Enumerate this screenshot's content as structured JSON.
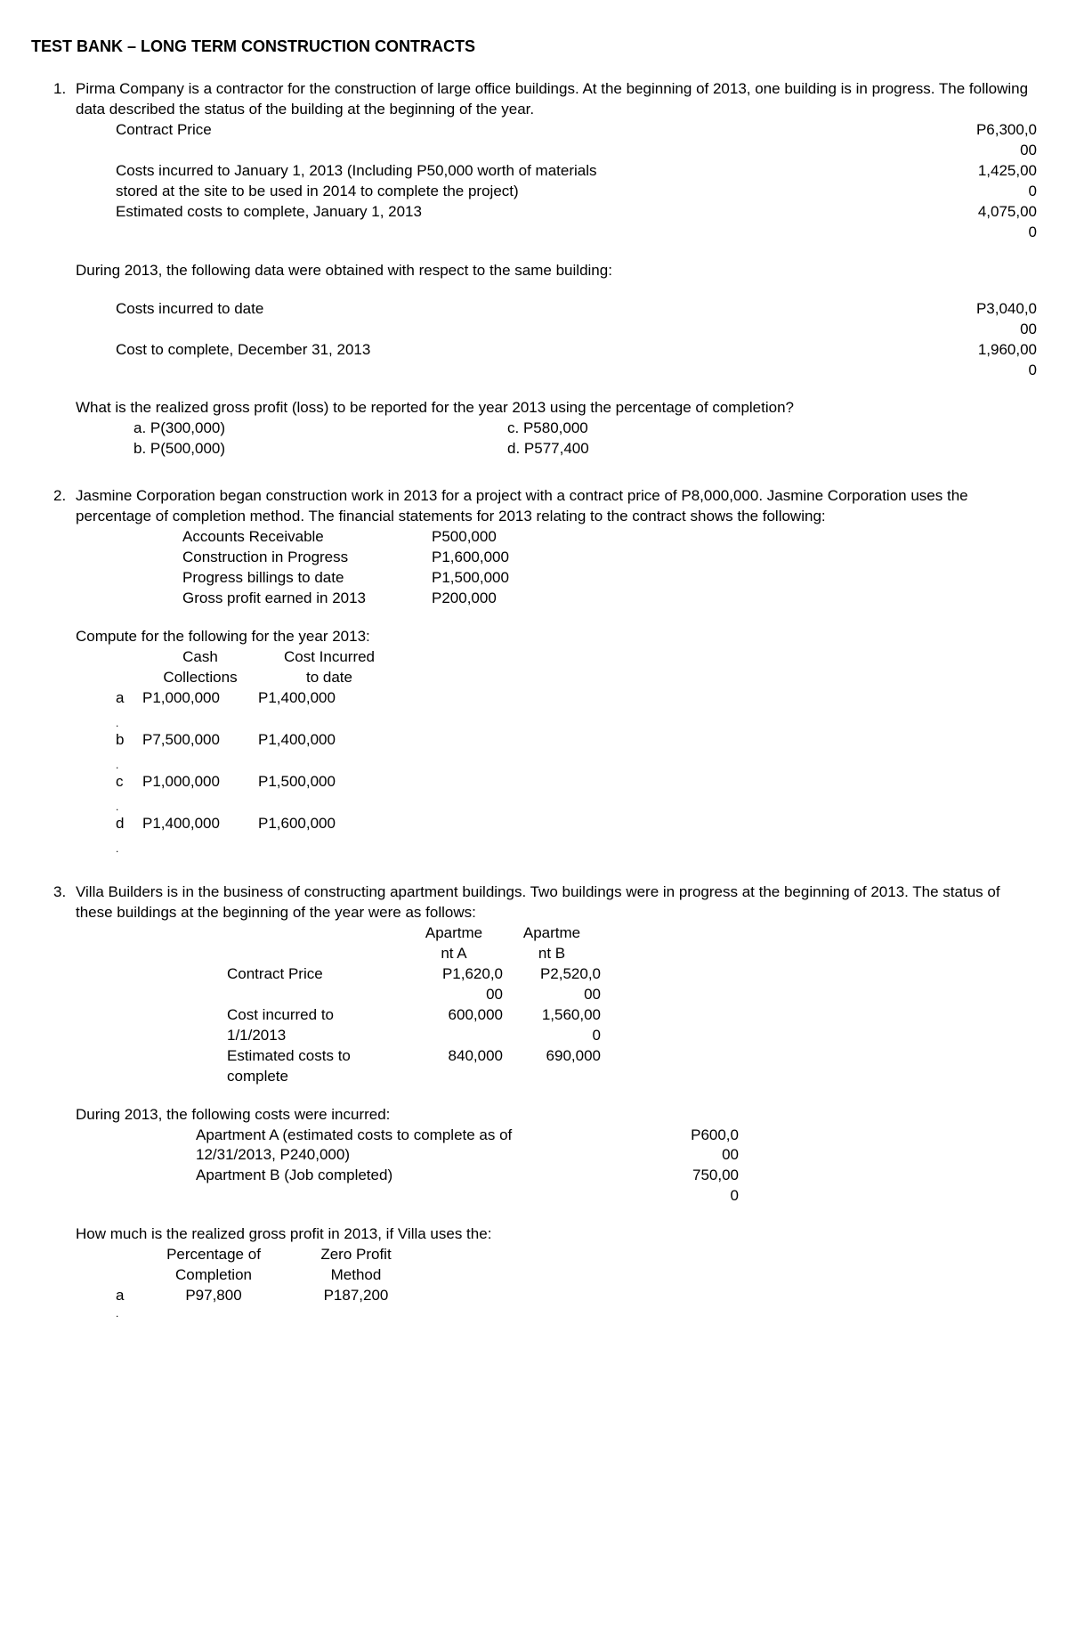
{
  "title": "TEST BANK – LONG TERM CONSTRUCTION CONTRACTS",
  "q1": {
    "num": "1.",
    "intro": "Pirma Company is a contractor for the construction of large office buildings. At the beginning of 2013, one building is in progress. The following data described the status of the building at the beginning of the year.",
    "r1l": "Contract Price",
    "r1v1": "P6,300,0",
    "r1v2": "00",
    "r2l": "Costs incurred to January 1, 2013 (Including P50,000 worth of materials",
    "r2v": "1,425,00",
    "r3l": "stored at the site to be used in 2014 to complete the project)",
    "r3v": "0",
    "r4l": "Estimated costs to complete, January 1, 2013",
    "r4v1": "4,075,00",
    "r4v2": "0",
    "p2": "During 2013, the following data were obtained with respect to the same building:",
    "r5l": "Costs incurred to date",
    "r5v1": "P3,040,0",
    "r5v2": "00",
    "r6l": "Cost to complete, December 31, 2013",
    "r6v1": "1,960,00",
    "r6v2": "0",
    "q": "What is the realized gross profit (loss) to be reported for the year 2013 using the percentage of completion?",
    "a": "a.  P(300,000)",
    "c": "c.  P580,000",
    "b": "b.  P(500,000)",
    "d": "d.  P577,400"
  },
  "q2": {
    "num": "2.",
    "intro": "Jasmine Corporation began construction work in 2013 for a project with a contract price of P8,000,000. Jasmine Corporation uses the percentage of completion method. The financial statements for 2013 relating to the contract shows the following:",
    "d1l": "Accounts Receivable",
    "d1v": "P500,000",
    "d2l": "Construction in Progress",
    "d2v": "P1,600,000",
    "d3l": "Progress billings to date",
    "d3v": "P1,500,000",
    "d4l": "Gross profit earned in 2013",
    "d4v": "P200,000",
    "q": "Compute for the following for the year 2013:",
    "h1a": "Cash",
    "h1b": "Collections",
    "h2a": "Cost Incurred",
    "h2b": "to date",
    "ra": "a",
    "ra1": "P1,000,000",
    "ra2": "P1,400,000",
    "rb": "b",
    "rb1": "P7,500,000",
    "rb2": "P1,400,000",
    "rc": "c",
    "rc1": "P1,000,000",
    "rc2": "P1,500,000",
    "rd": "d",
    "rd1": "P1,400,000",
    "rd2": "P1,600,000",
    "dot": "."
  },
  "q3": {
    "num": "3.",
    "intro": "Villa Builders is in the business of constructing apartment buildings. Two buildings were in progress at the beginning of 2013. The status of these buildings at the beginning of the year were as follows:",
    "h1a": "Apartme",
    "h1b": "nt A",
    "h2a": "Apartme",
    "h2b": "nt B",
    "r1l": "Contract Price",
    "r1v1a": "P1,620,0",
    "r1v1b": "00",
    "r1v2a": "P2,520,0",
    "r1v2b": "00",
    "r2l": "Cost incurred to",
    "r2l2": "1/1/2013",
    "r2v1": "600,000",
    "r2v2a": "1,560,00",
    "r2v2b": "0",
    "r3l": "Estimated costs to",
    "r3l2": "complete",
    "r3v1": "840,000",
    "r3v2": "690,000",
    "p2": "During 2013, the following costs were incurred:",
    "c1l1": "Apartment A (estimated costs to complete as of",
    "c1l2": "12/31/2013, P240,000)",
    "c1v1": "P600,0",
    "c1v2": "00",
    "c2l": "Apartment B (Job completed)",
    "c2v1": "750,00",
    "c2v2": "0",
    "q": "How much is the realized gross profit in 2013, if Villa uses the:",
    "ah1a": "Percentage of",
    "ah1b": "Completion",
    "ah2a": "Zero Profit",
    "ah2b": "Method",
    "ara": "a",
    "arav1": "P97,800",
    "arav2": "P187,200",
    "dot": "."
  }
}
